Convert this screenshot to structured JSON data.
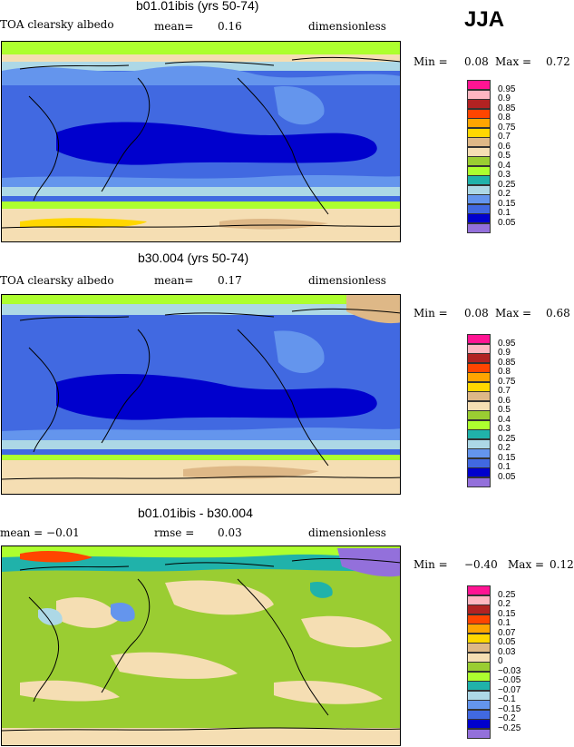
{
  "season": "JJA",
  "colors": {
    "abs": [
      "#9370DB",
      "#0000CD",
      "#4169E1",
      "#6495ED",
      "#ADD8E6",
      "#20B2AA",
      "#ADFF2F",
      "#9ACD32",
      "#F5DEB3",
      "#DEB887",
      "#FFD700",
      "#FFA500",
      "#FF4500",
      "#B22222",
      "#FFB6C1",
      "#FF1493"
    ],
    "diff": [
      "#9370DB",
      "#0000CD",
      "#4169E1",
      "#6495ED",
      "#ADD8E6",
      "#20B2AA",
      "#ADFF2F",
      "#9ACD32",
      "#F5DEB3",
      "#DEB887",
      "#FFD700",
      "#FFA500",
      "#FF4500",
      "#B22222",
      "#FFB6C1",
      "#FF1493"
    ]
  },
  "panels": [
    {
      "title": "b01.01ibis (yrs 50-74)",
      "left": "TOA clearsky albedo",
      "mid_label": "mean=",
      "mid_value": "0.16",
      "units": "dimensionless",
      "min_label": "Min =",
      "min_value": "0.08",
      "max_label": "Max =",
      "max_value": "0.72",
      "legend": [
        "0.95",
        "0.9",
        "0.85",
        "0.8",
        "0.75",
        "0.7",
        "0.6",
        "0.5",
        "0.4",
        "0.3",
        "0.25",
        "0.2",
        "0.15",
        "0.1",
        "0.05"
      ]
    },
    {
      "title": "b30.004 (yrs 50-74)",
      "left": "TOA clearsky albedo",
      "mid_label": "mean=",
      "mid_value": "0.17",
      "units": "dimensionless",
      "min_label": "Min =",
      "min_value": "0.08",
      "max_label": "Max =",
      "max_value": "0.68",
      "legend": [
        "0.95",
        "0.9",
        "0.85",
        "0.8",
        "0.75",
        "0.7",
        "0.6",
        "0.5",
        "0.4",
        "0.3",
        "0.25",
        "0.2",
        "0.15",
        "0.1",
        "0.05"
      ]
    },
    {
      "title": "b01.01ibis - b30.004",
      "left": "mean =  −0.01",
      "mid_label": "rmse =",
      "mid_value": "0.03",
      "units": "dimensionless",
      "min_label": "Min =",
      "min_value": "−0.40",
      "max_label": "Max =",
      "max_value": "0.12",
      "legend": [
        "0.25",
        "0.2",
        "0.15",
        "0.1",
        "0.07",
        "0.05",
        "0.03",
        "0",
        "−0.03",
        "−0.05",
        "−0.07",
        "−0.1",
        "−0.15",
        "−0.2",
        "−0.25"
      ]
    }
  ]
}
